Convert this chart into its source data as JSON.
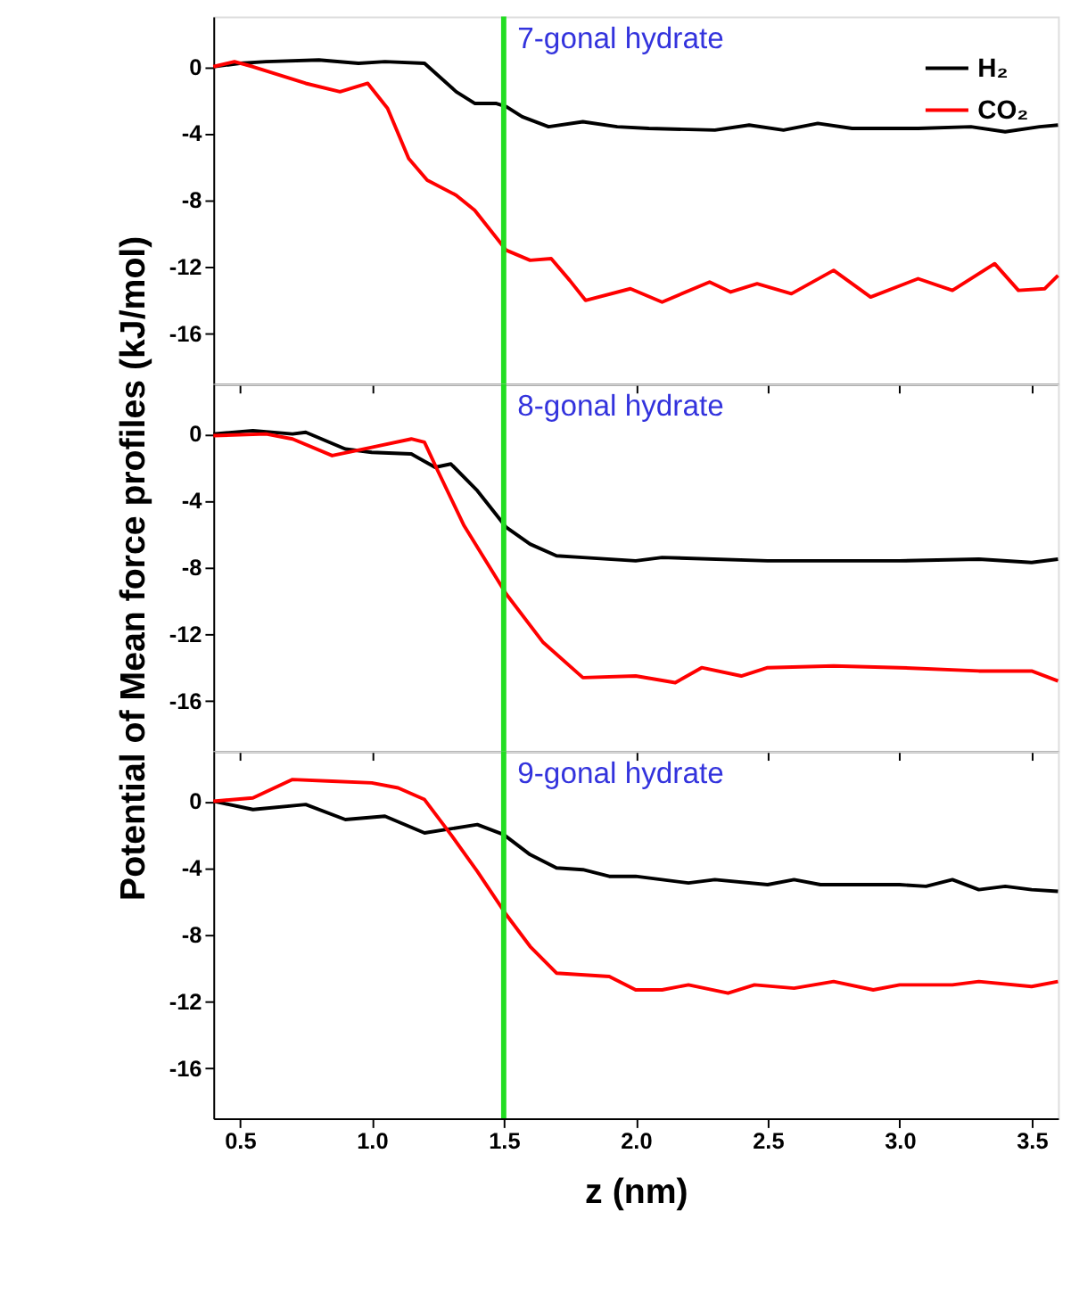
{
  "chart_data": [
    {
      "type": "line",
      "annotations": [
        "7-gonal hydrate"
      ],
      "xlim": [
        0.4,
        3.6
      ],
      "ylim": [
        -19,
        3
      ],
      "yticks": [
        0,
        -4,
        -8,
        -12,
        -16
      ],
      "xticks": [
        0.5,
        1.0,
        1.5,
        2.0,
        2.5,
        3.0,
        3.5
      ],
      "tick_labels": "y",
      "grid": false,
      "legend": "top right",
      "ref_lines": [
        {
          "axis": "x",
          "value": 1.5,
          "color": "#22dd22"
        }
      ],
      "series": [
        {
          "name": "H₂",
          "color": "#000000",
          "x": [
            0.4,
            0.5,
            0.6,
            0.8,
            0.95,
            1.05,
            1.2,
            1.32,
            1.39,
            1.47,
            1.51,
            1.57,
            1.67,
            1.8,
            1.93,
            2.05,
            2.3,
            2.43,
            2.56,
            2.69,
            2.82,
            3.07,
            3.27,
            3.4,
            3.53,
            3.6
          ],
          "values": [
            0,
            0.2,
            0.3,
            0.4,
            0.2,
            0.3,
            0.2,
            -1.5,
            -2.2,
            -2.2,
            -2.4,
            -3.0,
            -3.6,
            -3.3,
            -3.6,
            -3.7,
            -3.8,
            -3.5,
            -3.8,
            -3.4,
            -3.7,
            -3.7,
            -3.6,
            -3.9,
            -3.6,
            -3.5
          ]
        },
        {
          "name": "CO₂",
          "color": "#ff0000",
          "x": [
            0.4,
            0.48,
            0.55,
            0.65,
            0.75,
            0.88,
            0.985,
            1.06,
            1.14,
            1.21,
            1.32,
            1.39,
            1.51,
            1.6,
            1.68,
            1.75,
            1.81,
            1.98,
            2.1,
            2.28,
            2.36,
            2.46,
            2.59,
            2.75,
            2.89,
            3.07,
            3.2,
            3.36,
            3.45,
            3.55,
            3.6
          ],
          "values": [
            0,
            0.3,
            0,
            -0.5,
            -1.0,
            -1.5,
            -1.0,
            -2.5,
            -5.5,
            -6.8,
            -7.7,
            -8.6,
            -11,
            -11.6,
            -11.5,
            -12.8,
            -14,
            -13.3,
            -14.1,
            -12.9,
            -13.5,
            -13,
            -13.6,
            -12.2,
            -13.8,
            -12.7,
            -13.4,
            -11.8,
            -13.4,
            -13.3,
            -12.5
          ]
        }
      ]
    },
    {
      "type": "line",
      "annotations": [
        "8-gonal hydrate"
      ],
      "ylabel": "Potential of Mean force profiles (kJ/mol)",
      "xlim": [
        0.4,
        3.6
      ],
      "ylim": [
        -19,
        3
      ],
      "yticks": [
        0,
        -4,
        -8,
        -12,
        -16
      ],
      "xticks": [
        0.5,
        1.0,
        1.5,
        2.0,
        2.5,
        3.0,
        3.5
      ],
      "tick_labels": "y",
      "grid": false,
      "ref_lines": [
        {
          "axis": "x",
          "value": 1.5,
          "color": "#22dd22"
        }
      ],
      "series": [
        {
          "color": "#000000",
          "x": [
            0.4,
            0.55,
            0.7,
            0.75,
            0.9,
            1.0,
            1.15,
            1.24,
            1.3,
            1.4,
            1.51,
            1.6,
            1.7,
            1.8,
            2.0,
            2.1,
            2.5,
            3.0,
            3.3,
            3.5,
            3.6
          ],
          "values": [
            0,
            0.2,
            0,
            0.1,
            -0.9,
            -1.1,
            -1.2,
            -2.0,
            -1.8,
            -3.4,
            -5.6,
            -6.6,
            -7.3,
            -7.4,
            -7.6,
            -7.4,
            -7.6,
            -7.6,
            -7.5,
            -7.7,
            -7.5
          ]
        },
        {
          "color": "#ff0000",
          "x": [
            0.4,
            0.6,
            0.7,
            0.85,
            1.0,
            1.15,
            1.2,
            1.25,
            1.35,
            1.51,
            1.65,
            1.8,
            2.0,
            2.15,
            2.25,
            2.4,
            2.5,
            2.75,
            3.0,
            3.3,
            3.5,
            3.6
          ],
          "values": [
            -0.1,
            0,
            -0.3,
            -1.3,
            -0.8,
            -0.3,
            -0.5,
            -2.2,
            -5.5,
            -9.6,
            -12.5,
            -14.6,
            -14.5,
            -14.9,
            -14.0,
            -14.5,
            -14.0,
            -13.9,
            -14.0,
            -14.2,
            -14.2,
            -14.8
          ]
        }
      ]
    },
    {
      "type": "line",
      "annotations": [
        "9-gonal hydrate"
      ],
      "xlabel": "z (nm)",
      "xlim": [
        0.4,
        3.6
      ],
      "ylim": [
        -19,
        3
      ],
      "yticks": [
        0,
        -4,
        -8,
        -12,
        -16
      ],
      "xticks": [
        0.5,
        {
          "value": 1,
          "label": "1.0"
        },
        1.5,
        {
          "value": 2,
          "label": "2.0"
        },
        2.5,
        {
          "value": 3,
          "label": "3.0"
        },
        3.5
      ],
      "grid": false,
      "ref_lines": [
        {
          "axis": "x",
          "value": 1.5,
          "color": "#22dd22"
        }
      ],
      "series": [
        {
          "color": "#000000",
          "x": [
            0.4,
            0.55,
            0.75,
            0.9,
            1.05,
            1.2,
            1.4,
            1.5,
            1.6,
            1.7,
            1.8,
            1.9,
            2.0,
            2.2,
            2.3,
            2.5,
            2.6,
            2.7,
            3.0,
            3.1,
            3.2,
            3.3,
            3.4,
            3.5,
            3.6
          ],
          "values": [
            0,
            -0.5,
            -0.2,
            -1.1,
            -0.9,
            -1.9,
            -1.4,
            -2.0,
            -3.2,
            -4.0,
            -4.1,
            -4.5,
            -4.5,
            -4.9,
            -4.7,
            -5.0,
            -4.7,
            -5.0,
            -5.0,
            -5.1,
            -4.7,
            -5.3,
            -5.1,
            -5.3,
            -5.4
          ]
        },
        {
          "color": "#ff0000",
          "x": [
            0.4,
            0.55,
            0.7,
            0.85,
            1.0,
            1.1,
            1.2,
            1.3,
            1.4,
            1.51,
            1.6,
            1.7,
            1.9,
            2.0,
            2.1,
            2.2,
            2.35,
            2.45,
            2.6,
            2.75,
            2.9,
            3.0,
            3.2,
            3.3,
            3.5,
            3.6
          ],
          "values": [
            0,
            0.2,
            1.3,
            1.2,
            1.1,
            0.8,
            0.1,
            -2.0,
            -4.2,
            -6.8,
            -8.7,
            -10.3,
            -10.5,
            -11.3,
            -11.3,
            -11.0,
            -11.5,
            -11.0,
            -11.2,
            -10.8,
            -11.3,
            -11.0,
            -11.0,
            -10.8,
            -11.1,
            -10.8
          ]
        }
      ]
    }
  ]
}
